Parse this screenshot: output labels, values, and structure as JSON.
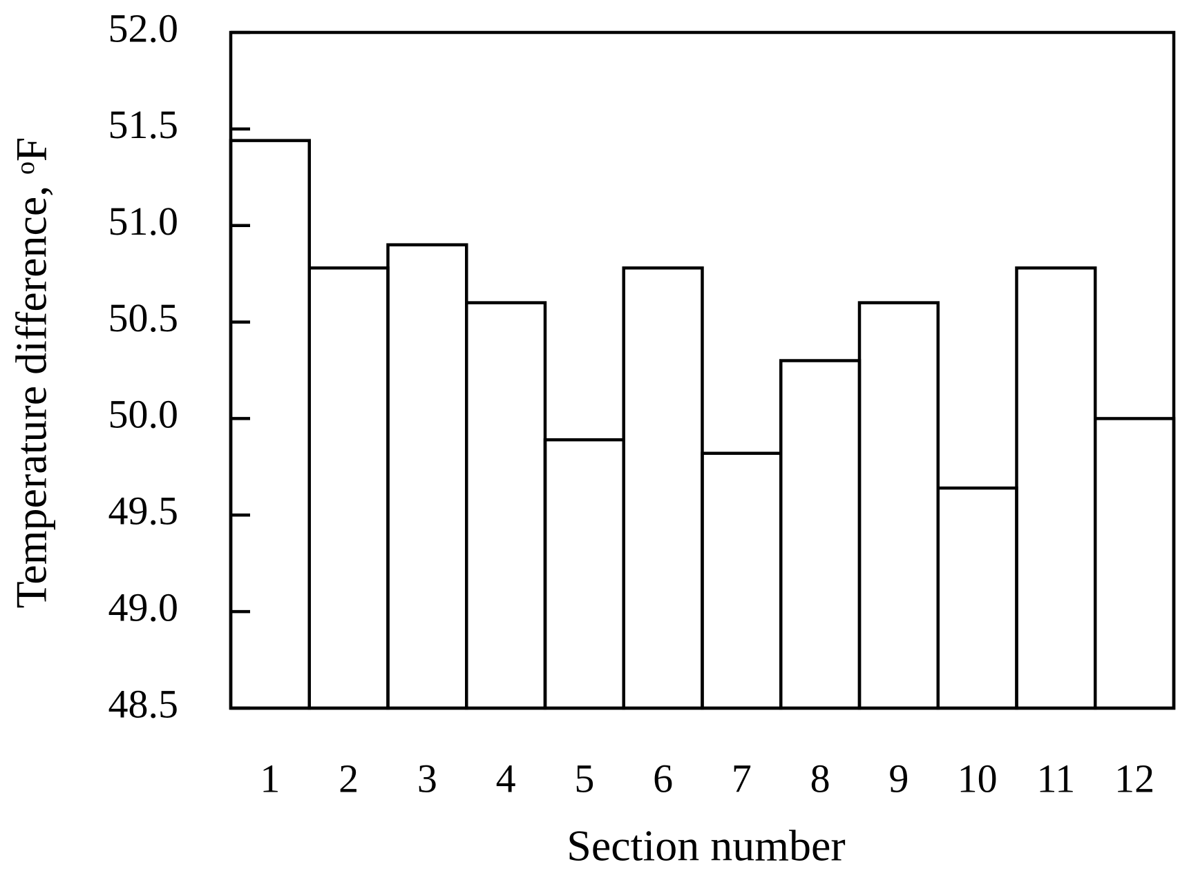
{
  "chart_data": {
    "type": "bar",
    "xlabel": "Section number",
    "ylabel": "Temperature difference, ᵒF",
    "categories": [
      "1",
      "2",
      "3",
      "4",
      "5",
      "6",
      "7",
      "8",
      "9",
      "10",
      "11",
      "12"
    ],
    "values": [
      51.44,
      50.78,
      50.9,
      50.6,
      49.89,
      50.78,
      49.82,
      50.3,
      50.6,
      49.64,
      50.78,
      50.0
    ],
    "color": "#000000",
    "ylim": [
      48.5,
      52
    ],
    "yticks": [
      {
        "value": 48.5,
        "label": "48.5"
      },
      {
        "value": 49,
        "label": "49.0"
      },
      49.5,
      {
        "value": 50,
        "label": "50.0"
      },
      50.5,
      {
        "value": 51,
        "label": "51.0"
      },
      51.5,
      {
        "value": 52,
        "label": "52.0"
      }
    ],
    "grid": false
  }
}
